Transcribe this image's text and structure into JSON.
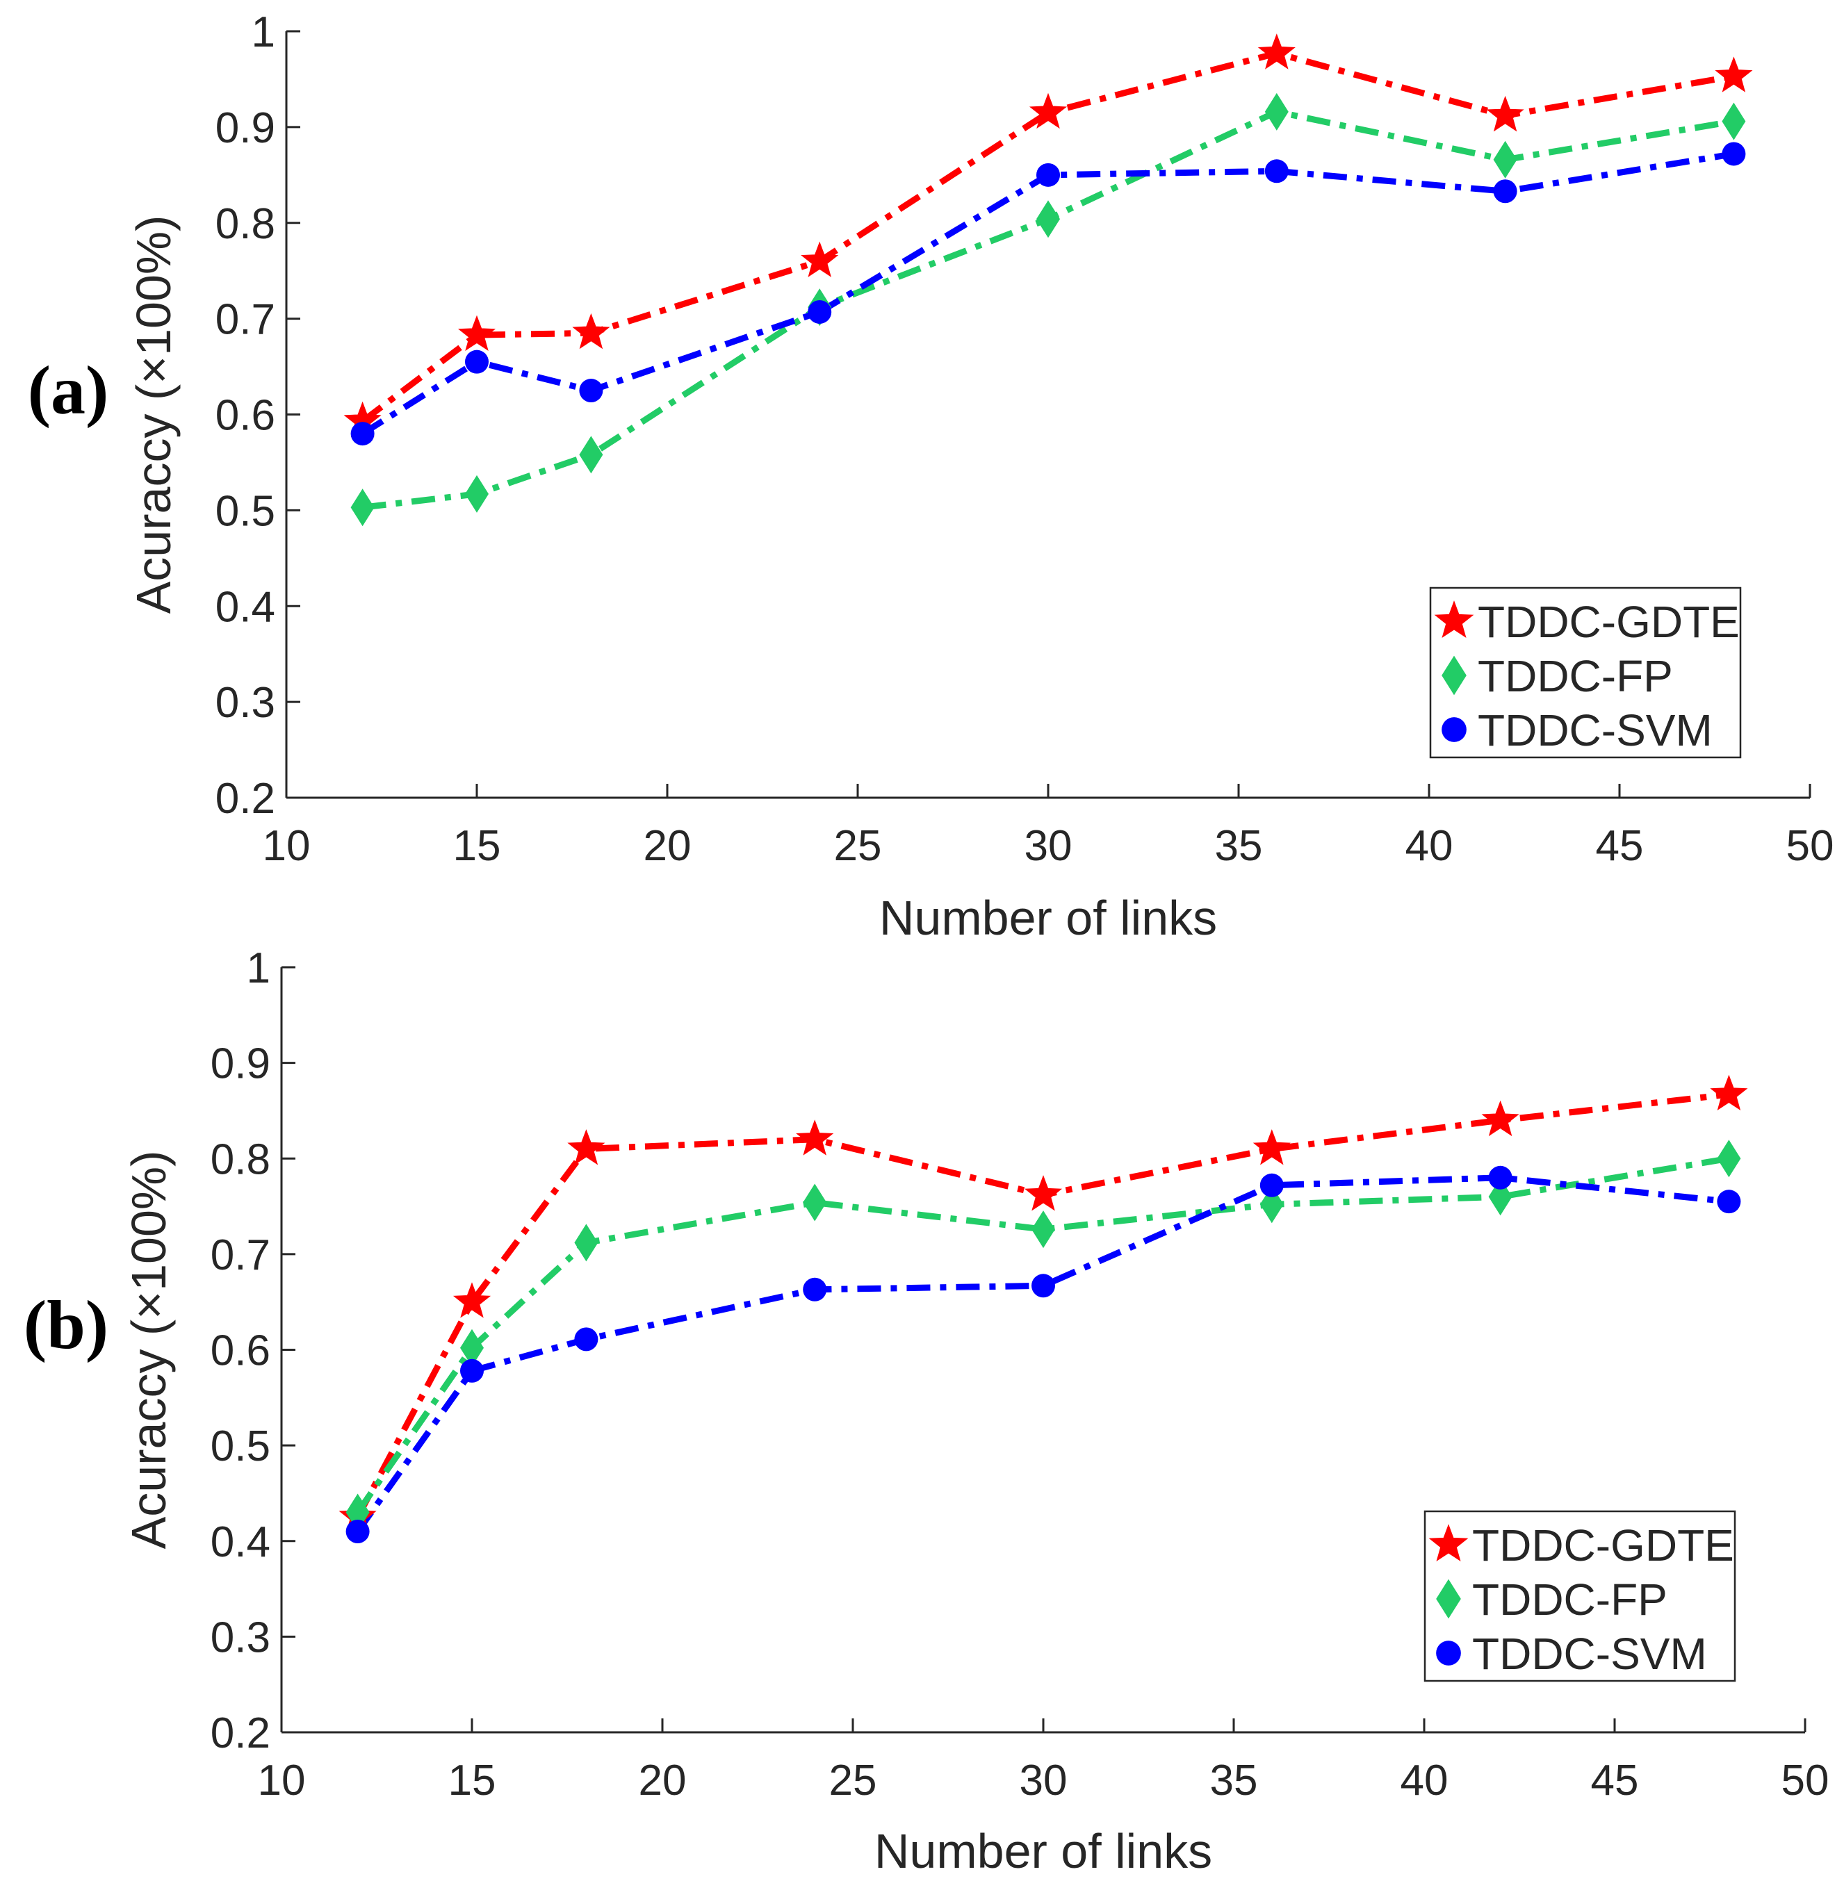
{
  "chart_data": [
    {
      "type": "line",
      "panel_label": "(a)",
      "title": "",
      "xlabel": "Number of links",
      "ylabel": "Acuraccy (×100%)",
      "xlim": [
        10,
        50
      ],
      "ylim": [
        0.2,
        1
      ],
      "xticks": [
        "10",
        "15",
        "20",
        "25",
        "30",
        "35",
        "40",
        "45",
        "50"
      ],
      "yticks": [
        "0.2",
        "0.3",
        "0.4",
        "0.5",
        "0.6",
        "0.7",
        "0.8",
        "0.9",
        "1"
      ],
      "grid": false,
      "legend_position": "bottom-right",
      "x": [
        12,
        15,
        18,
        24,
        30,
        36,
        42,
        48
      ],
      "series": [
        {
          "name": "TDDC-GDTE",
          "color": "#ff0000",
          "marker": "star",
          "values": [
            0.593,
            0.683,
            0.685,
            0.76,
            0.915,
            0.977,
            0.912,
            0.953
          ]
        },
        {
          "name": "TDDC-FP",
          "color": "#22cc66",
          "marker": "diamond",
          "values": [
            0.503,
            0.517,
            0.558,
            0.712,
            0.804,
            0.916,
            0.866,
            0.906
          ]
        },
        {
          "name": "TDDC-SVM",
          "color": "#0000ff",
          "marker": "circle",
          "values": [
            0.58,
            0.655,
            0.625,
            0.707,
            0.85,
            0.854,
            0.833,
            0.872
          ]
        }
      ]
    },
    {
      "type": "line",
      "panel_label": "(b)",
      "title": "",
      "xlabel": "Number of links",
      "ylabel": "Acuraccy (×100%)",
      "xlim": [
        10,
        50
      ],
      "ylim": [
        0.2,
        1
      ],
      "xticks": [
        "10",
        "15",
        "20",
        "25",
        "30",
        "35",
        "40",
        "45",
        "50"
      ],
      "yticks": [
        "0.2",
        "0.3",
        "0.4",
        "0.5",
        "0.6",
        "0.7",
        "0.8",
        "0.9",
        "1"
      ],
      "grid": false,
      "legend_position": "bottom-right",
      "x": [
        12,
        15,
        18,
        24,
        30,
        36,
        42,
        48
      ],
      "series": [
        {
          "name": "TDDC-GDTE",
          "color": "#ff0000",
          "marker": "star",
          "values": [
            0.425,
            0.65,
            0.81,
            0.82,
            0.762,
            0.81,
            0.84,
            0.867
          ]
        },
        {
          "name": "TDDC-FP",
          "color": "#22cc66",
          "marker": "diamond",
          "values": [
            0.43,
            0.602,
            0.712,
            0.754,
            0.726,
            0.752,
            0.76,
            0.8
          ]
        },
        {
          "name": "TDDC-SVM",
          "color": "#0000ff",
          "marker": "circle",
          "values": [
            0.41,
            0.578,
            0.611,
            0.663,
            0.667,
            0.772,
            0.78,
            0.755
          ]
        }
      ]
    }
  ]
}
